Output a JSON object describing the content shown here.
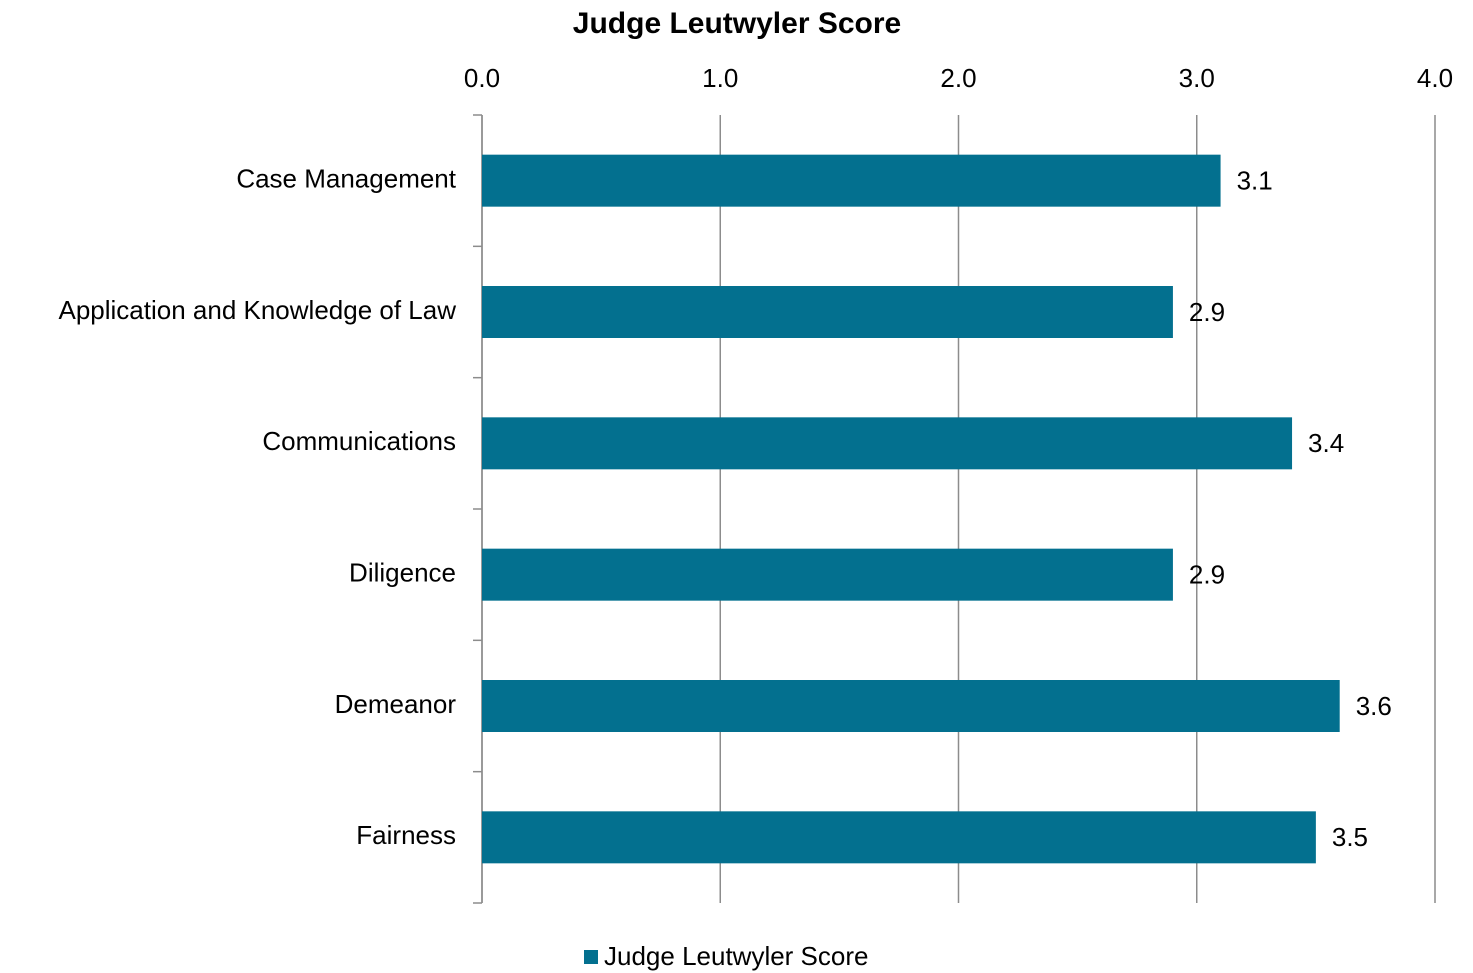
{
  "chart_data": {
    "type": "bar",
    "orientation": "horizontal",
    "title": "Judge Leutwyler Score",
    "categories": [
      "Case Management",
      "Application and Knowledge of Law",
      "Communications",
      "Diligence",
      "Demeanor",
      "Fairness"
    ],
    "series": [
      {
        "name": "Judge Leutwyler Score",
        "color": "#03708f",
        "values": [
          3.1,
          2.9,
          3.4,
          2.9,
          3.6,
          3.5
        ]
      }
    ],
    "xlim": [
      0,
      4
    ],
    "xticks": [
      {
        "value": 0,
        "label": "0.0"
      },
      {
        "value": 1,
        "label": "1.0"
      },
      {
        "value": 2,
        "label": "2.0"
      },
      {
        "value": 3,
        "label": "3.0"
      },
      {
        "value": 4,
        "label": "4.0"
      }
    ],
    "grid": true,
    "legend": "bottom"
  }
}
